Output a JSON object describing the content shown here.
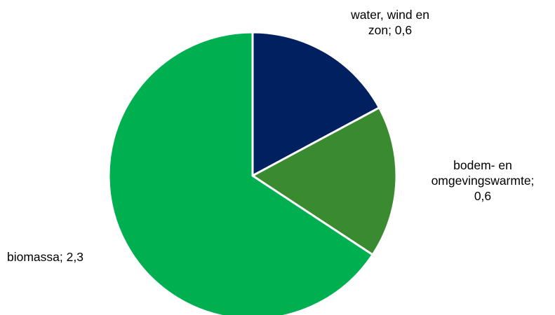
{
  "chart_data": {
    "type": "pie",
    "title": "",
    "slices": [
      {
        "name": "water, wind en zon",
        "value": 0.6,
        "label_lines": [
          "water, wind en",
          "zon; 0,6"
        ],
        "color": "#002060"
      },
      {
        "name": "bodem- en omgevingswarmte",
        "value": 0.6,
        "label_lines": [
          "bodem- en",
          "omgevingswarmte;",
          "0,6"
        ],
        "color": "#3A8B30"
      },
      {
        "name": "biomassa",
        "value": 2.3,
        "label_lines": [
          "biomassa; 2,3"
        ],
        "color": "#00B050"
      }
    ],
    "start_angle_deg": 0,
    "direction": "clockwise",
    "slice_border_color": "#ffffff",
    "legend": "none"
  }
}
